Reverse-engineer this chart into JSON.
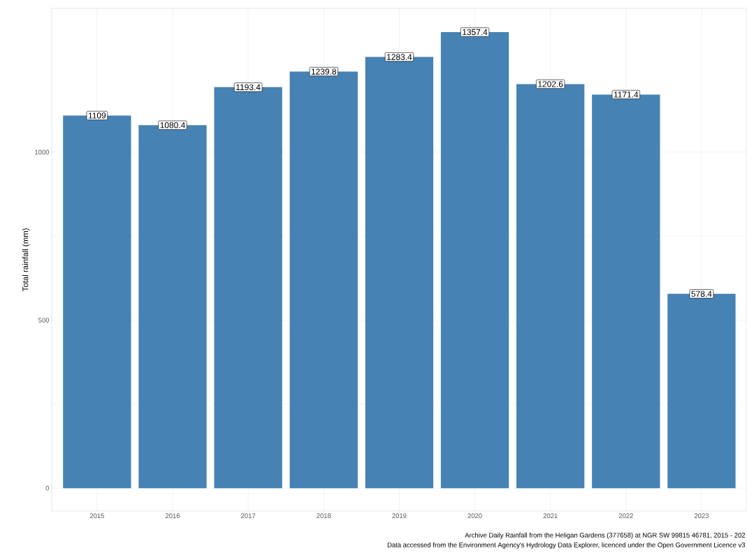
{
  "chart_data": {
    "type": "bar",
    "ylabel": "Total rainfall (mm)",
    "categories": [
      "2015",
      "2016",
      "2017",
      "2018",
      "2019",
      "2020",
      "2021",
      "2022",
      "2023"
    ],
    "values": [
      1109,
      1080.4,
      1193.4,
      1239.8,
      1283.4,
      1357.4,
      1202.6,
      1171.4,
      578.4
    ],
    "color": "#4682b4",
    "data_labels": true,
    "grid": true,
    "ylim": [
      -68,
      1428
    ],
    "yticks": [
      0,
      500,
      1000
    ],
    "annotations": [
      "Archive Daily Rainfall from the Heligan Gardens (377658) at NGR SW 99815 46781, 2015 - 202",
      "Data accessed from the Environment Agency's Hydrology Data Explorer, licenced under the Open Government Licence v3"
    ]
  }
}
